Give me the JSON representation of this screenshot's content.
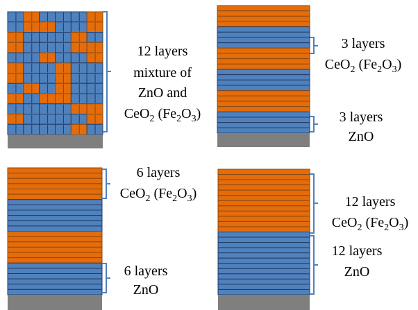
{
  "colors": {
    "orange": "#e46c0a",
    "blue": "#4f81bd",
    "outline": "#243b63",
    "orange_outline": "#8a4a12",
    "substrate": "#7f7f7f",
    "bracket": "#4f81bd"
  },
  "panels": [
    {
      "id": "mixture",
      "caption": {
        "line1": "12 layers",
        "line2": "mixture of",
        "line3": "ZnO and",
        "formula_head": "CeO",
        "formula_sub1": "2",
        "formula_mid": " (Fe",
        "formula_sub2": "2",
        "formula_o": "O",
        "formula_sub3": "3",
        "formula_tail": ")"
      }
    },
    {
      "id": "alternating-3",
      "top_label": {
        "line1": "3 layers",
        "formula_head": "CeO",
        "formula_sub1": "2",
        "formula_mid": " (Fe",
        "formula_sub2": "2",
        "formula_o": "O",
        "formula_sub3": "3",
        "formula_tail": ")"
      },
      "bottom_label": {
        "line1": "3 layers",
        "line2": "ZnO"
      }
    },
    {
      "id": "alternating-6",
      "top_label": {
        "line1": "6 layers",
        "formula_head": "CeO",
        "formula_sub1": "2",
        "formula_mid": " (Fe",
        "formula_sub2": "2",
        "formula_o": "O",
        "formula_sub3": "3",
        "formula_tail": ")"
      },
      "bottom_label": {
        "line1": "6 layers",
        "line2": "ZnO"
      }
    },
    {
      "id": "bilayer-12",
      "top_label": {
        "line1": "12 layers",
        "formula_head": "CeO",
        "formula_sub1": "2",
        "formula_mid": " (Fe",
        "formula_sub2": "2",
        "formula_o": "O",
        "formula_sub3": "3",
        "formula_tail": ")"
      },
      "bottom_label": {
        "line1": "12 layers",
        "line2": "ZnO"
      }
    }
  ]
}
